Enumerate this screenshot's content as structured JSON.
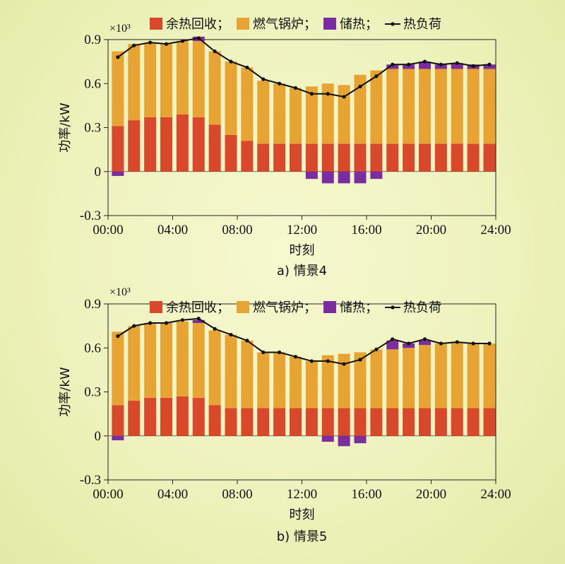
{
  "chart_data": [
    {
      "type": "bar",
      "caption": "a) 情景4",
      "multiplier": "×10³",
      "xlabel": "时刻",
      "ylabel": "功率/kW",
      "ylim": [
        -0.3,
        0.9
      ],
      "yticks": [
        "-0.3",
        "0",
        "0.3",
        "0.6",
        "0.9"
      ],
      "xticks": [
        "00:00",
        "04:00",
        "08:00",
        "12:00",
        "16:00",
        "20:00",
        "24:00"
      ],
      "legend": [
        {
          "name": "余热回收",
          "color": "#d9482b",
          "kind": "bar"
        },
        {
          "name": "燃气锅炉",
          "color": "#e8a433",
          "kind": "bar"
        },
        {
          "name": "储热",
          "color": "#7b2da0",
          "kind": "bar"
        },
        {
          "name": "热负荷",
          "color": "#111111",
          "kind": "line"
        }
      ],
      "hours": [
        1,
        2,
        3,
        4,
        5,
        6,
        7,
        8,
        9,
        10,
        11,
        12,
        13,
        14,
        15,
        16,
        17,
        18,
        19,
        20,
        21,
        22,
        23,
        24
      ],
      "series": [
        {
          "name": "余热回收",
          "values": [
            0.31,
            0.35,
            0.37,
            0.37,
            0.39,
            0.37,
            0.32,
            0.25,
            0.21,
            0.19,
            0.19,
            0.19,
            0.19,
            0.19,
            0.19,
            0.19,
            0.19,
            0.19,
            0.19,
            0.19,
            0.19,
            0.19,
            0.19,
            0.19
          ]
        },
        {
          "name": "燃气锅炉",
          "values": [
            0.51,
            0.52,
            0.51,
            0.5,
            0.5,
            0.52,
            0.5,
            0.5,
            0.5,
            0.43,
            0.41,
            0.38,
            0.39,
            0.41,
            0.4,
            0.47,
            0.5,
            0.51,
            0.51,
            0.51,
            0.51,
            0.51,
            0.51,
            0.51
          ]
        },
        {
          "name": "储热",
          "values": [
            -0.03,
            0,
            0,
            0,
            0,
            0.03,
            0,
            0,
            0,
            0,
            0,
            0,
            -0.05,
            -0.08,
            -0.08,
            -0.08,
            -0.05,
            0.03,
            0.03,
            0.05,
            0.03,
            0.04,
            0.03,
            0.03
          ]
        },
        {
          "name": "热负荷",
          "values": [
            0.78,
            0.86,
            0.88,
            0.87,
            0.89,
            0.91,
            0.82,
            0.75,
            0.71,
            0.63,
            0.6,
            0.57,
            0.53,
            0.53,
            0.51,
            0.58,
            0.65,
            0.73,
            0.73,
            0.75,
            0.73,
            0.74,
            0.72,
            0.73
          ]
        }
      ]
    },
    {
      "type": "bar",
      "caption": "b) 情景5",
      "multiplier": "×10³",
      "xlabel": "时刻",
      "ylabel": "功率/kW",
      "ylim": [
        -0.3,
        0.9
      ],
      "yticks": [
        "-0.3",
        "0",
        "0.3",
        "0.6",
        "0.9"
      ],
      "xticks": [
        "00:00",
        "04:00",
        "08:00",
        "12:00",
        "16:00",
        "20:00",
        "24:00"
      ],
      "legend": [
        {
          "name": "余热回收",
          "color": "#d9482b",
          "kind": "bar"
        },
        {
          "name": "燃气锅炉",
          "color": "#e8a433",
          "kind": "bar"
        },
        {
          "name": "储热",
          "color": "#7b2da0",
          "kind": "bar"
        },
        {
          "name": "热负荷",
          "color": "#111111",
          "kind": "line"
        }
      ],
      "hours": [
        1,
        2,
        3,
        4,
        5,
        6,
        7,
        8,
        9,
        10,
        11,
        12,
        13,
        14,
        15,
        16,
        17,
        18,
        19,
        20,
        21,
        22,
        23,
        24
      ],
      "series": [
        {
          "name": "余热回收",
          "values": [
            0.21,
            0.24,
            0.26,
            0.26,
            0.27,
            0.26,
            0.21,
            0.19,
            0.19,
            0.19,
            0.19,
            0.19,
            0.19,
            0.19,
            0.19,
            0.19,
            0.19,
            0.19,
            0.19,
            0.19,
            0.19,
            0.19,
            0.19,
            0.19
          ]
        },
        {
          "name": "燃气锅炉",
          "values": [
            0.5,
            0.51,
            0.51,
            0.51,
            0.51,
            0.51,
            0.51,
            0.5,
            0.46,
            0.38,
            0.38,
            0.35,
            0.32,
            0.36,
            0.37,
            0.38,
            0.4,
            0.4,
            0.41,
            0.43,
            0.44,
            0.45,
            0.44,
            0.44
          ]
        },
        {
          "name": "储热",
          "values": [
            -0.03,
            0,
            0,
            0,
            0,
            0.02,
            0,
            0,
            0,
            0,
            0,
            0,
            0,
            -0.04,
            -0.07,
            -0.05,
            0,
            0.06,
            0.03,
            0.03,
            0,
            0,
            0,
            0
          ]
        },
        {
          "name": "热负荷",
          "values": [
            0.68,
            0.75,
            0.77,
            0.77,
            0.79,
            0.8,
            0.73,
            0.69,
            0.65,
            0.57,
            0.57,
            0.54,
            0.51,
            0.51,
            0.49,
            0.52,
            0.59,
            0.66,
            0.63,
            0.66,
            0.63,
            0.64,
            0.63,
            0.63
          ]
        }
      ]
    }
  ]
}
